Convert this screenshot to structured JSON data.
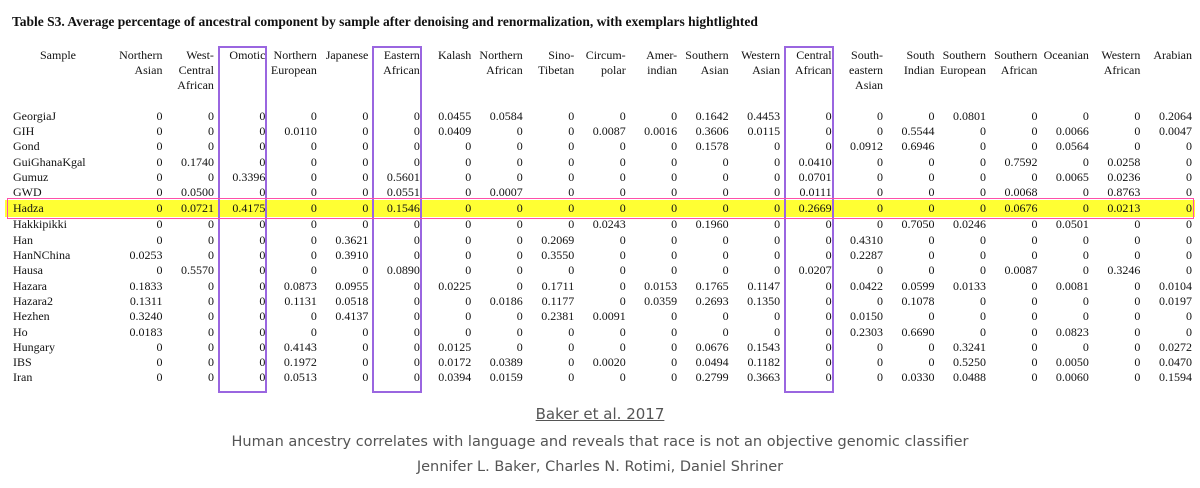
{
  "caption": "Table S3. Average percentage of ancestral component by sample after denoising and renormalization, with exemplars hightlighted",
  "columns": [
    "Sample",
    "Northern Asian",
    "West- Central African",
    "Omotic",
    "Northern European",
    "Japanese",
    "Eastern African",
    "Kalash",
    "Northern African",
    "Sino- Tibetan",
    "Circum- polar",
    "Amer- indian",
    "Southern Asian",
    "Western Asian",
    "Central African",
    "South- eastern Asian",
    "South Indian",
    "Southern European",
    "Southern African",
    "Oceanian",
    "Western African",
    "Arabian"
  ],
  "highlighted_columns": [
    "Omotic",
    "Eastern African",
    "Central African"
  ],
  "highlighted_row": "Hadza",
  "highlight_colors": {
    "row_fill": "#ffff33",
    "row_border": "#ff4fa8",
    "column_border": "#9a66e0"
  },
  "rows": [
    [
      "GeorgiaJ",
      "0",
      "0",
      "0",
      "0",
      "0",
      "0",
      "0.0455",
      "0.0584",
      "0",
      "0",
      "0",
      "0.1642",
      "0.4453",
      "0",
      "0",
      "0",
      "0.0801",
      "0",
      "0",
      "0",
      "0.2064"
    ],
    [
      "GIH",
      "0",
      "0",
      "0",
      "0.0110",
      "0",
      "0",
      "0.0409",
      "0",
      "0",
      "0.0087",
      "0.0016",
      "0.3606",
      "0.0115",
      "0",
      "0",
      "0.5544",
      "0",
      "0",
      "0.0066",
      "0",
      "0.0047"
    ],
    [
      "Gond",
      "0",
      "0",
      "0",
      "0",
      "0",
      "0",
      "0",
      "0",
      "0",
      "0",
      "0",
      "0.1578",
      "0",
      "0",
      "0.0912",
      "0.6946",
      "0",
      "0",
      "0.0564",
      "0",
      "0"
    ],
    [
      "GuiGhanaKgal",
      "0",
      "0.1740",
      "0",
      "0",
      "0",
      "0",
      "0",
      "0",
      "0",
      "0",
      "0",
      "0",
      "0",
      "0.0410",
      "0",
      "0",
      "0",
      "0.7592",
      "0",
      "0.0258",
      "0"
    ],
    [
      "Gumuz",
      "0",
      "0",
      "0.3396",
      "0",
      "0",
      "0.5601",
      "0",
      "0",
      "0",
      "0",
      "0",
      "0",
      "0",
      "0.0701",
      "0",
      "0",
      "0",
      "0",
      "0.0065",
      "0.0236",
      "0"
    ],
    [
      "GWD",
      "0",
      "0.0500",
      "0",
      "0",
      "0",
      "0.0551",
      "0",
      "0.0007",
      "0",
      "0",
      "0",
      "0",
      "0",
      "0.0111",
      "0",
      "0",
      "0",
      "0.0068",
      "0",
      "0.8763",
      "0"
    ],
    [
      "Hadza",
      "0",
      "0.0721",
      "0.4175",
      "0",
      "0",
      "0.1546",
      "0",
      "0",
      "0",
      "0",
      "0",
      "0",
      "0",
      "0.2669",
      "0",
      "0",
      "0",
      "0.0676",
      "0",
      "0.0213",
      "0"
    ],
    [
      "Hakkipikki",
      "0",
      "0",
      "0",
      "0",
      "0",
      "0",
      "0",
      "0",
      "0",
      "0.0243",
      "0",
      "0.1960",
      "0",
      "0",
      "0",
      "0.7050",
      "0.0246",
      "0",
      "0.0501",
      "0",
      "0"
    ],
    [
      "Han",
      "0",
      "0",
      "0",
      "0",
      "0.3621",
      "0",
      "0",
      "0",
      "0.2069",
      "0",
      "0",
      "0",
      "0",
      "0",
      "0.4310",
      "0",
      "0",
      "0",
      "0",
      "0",
      "0"
    ],
    [
      "HanNChina",
      "0.0253",
      "0",
      "0",
      "0",
      "0.3910",
      "0",
      "0",
      "0",
      "0.3550",
      "0",
      "0",
      "0",
      "0",
      "0",
      "0.2287",
      "0",
      "0",
      "0",
      "0",
      "0",
      "0"
    ],
    [
      "Hausa",
      "0",
      "0.5570",
      "0",
      "0",
      "0",
      "0.0890",
      "0",
      "0",
      "0",
      "0",
      "0",
      "0",
      "0",
      "0.0207",
      "0",
      "0",
      "0",
      "0.0087",
      "0",
      "0.3246",
      "0"
    ],
    [
      "Hazara",
      "0.1833",
      "0",
      "0",
      "0.0873",
      "0.0955",
      "0",
      "0.0225",
      "0",
      "0.1711",
      "0",
      "0.0153",
      "0.1765",
      "0.1147",
      "0",
      "0.0422",
      "0.0599",
      "0.0133",
      "0",
      "0.0081",
      "0",
      "0.0104"
    ],
    [
      "Hazara2",
      "0.1311",
      "0",
      "0",
      "0.1131",
      "0.0518",
      "0",
      "0",
      "0.0186",
      "0.1177",
      "0",
      "0.0359",
      "0.2693",
      "0.1350",
      "0",
      "0",
      "0.1078",
      "0",
      "0",
      "0",
      "0",
      "0.0197"
    ],
    [
      "Hezhen",
      "0.3240",
      "0",
      "0",
      "0",
      "0.4137",
      "0",
      "0",
      "0",
      "0.2381",
      "0.0091",
      "0",
      "0",
      "0",
      "0",
      "0.0150",
      "0",
      "0",
      "0",
      "0",
      "0",
      "0"
    ],
    [
      "Ho",
      "0.0183",
      "0",
      "0",
      "0",
      "0",
      "0",
      "0",
      "0",
      "0",
      "0",
      "0",
      "0",
      "0",
      "0",
      "0.2303",
      "0.6690",
      "0",
      "0",
      "0.0823",
      "0",
      "0"
    ],
    [
      "Hungary",
      "0",
      "0",
      "0",
      "0.4143",
      "0",
      "0",
      "0.0125",
      "0",
      "0",
      "0",
      "0",
      "0.0676",
      "0.1543",
      "0",
      "0",
      "0",
      "0.3241",
      "0",
      "0",
      "0",
      "0.0272"
    ],
    [
      "IBS",
      "0",
      "0",
      "0",
      "0.1972",
      "0",
      "0",
      "0.0172",
      "0.0389",
      "0",
      "0.0020",
      "0",
      "0.0494",
      "0.1182",
      "0",
      "0",
      "0",
      "0.5250",
      "0",
      "0.0050",
      "0",
      "0.0470"
    ],
    [
      "Iran",
      "0",
      "0",
      "0",
      "0.0513",
      "0",
      "0",
      "0.0394",
      "0.0159",
      "0",
      "0",
      "0",
      "0.2799",
      "0.3663",
      "0",
      "0",
      "0.0330",
      "0.0488",
      "0",
      "0.0060",
      "0",
      "0.1594"
    ]
  ],
  "citation": {
    "title": "Baker et al. 2017",
    "description": "Human ancestry correlates with language and reveals that race is not an objective genomic classifier",
    "authors": "Jennifer L. Baker, Charles N. Rotimi, Daniel Shriner"
  }
}
